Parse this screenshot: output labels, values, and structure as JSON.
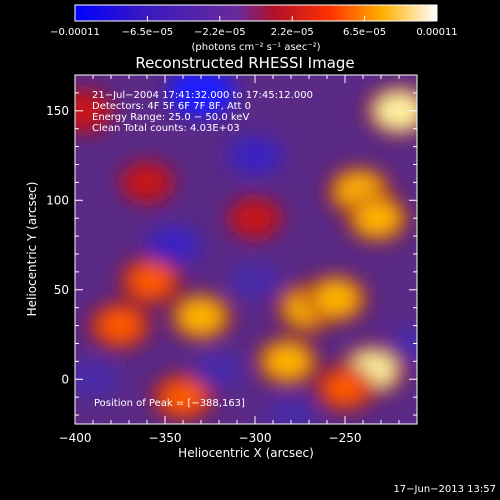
{
  "chart_data": {
    "type": "heatmap",
    "title": "Reconstructed RHESSI Image",
    "xlabel": "Heliocentric X (arcsec)",
    "ylabel": "Heliocentric Y (arcsec)",
    "xlim": [
      -400,
      -210
    ],
    "ylim": [
      -25,
      170
    ],
    "x_ticks": [
      -400,
      -350,
      -300,
      -250
    ],
    "x_tick_labels": [
      "−400",
      "−350",
      "−300",
      "−250"
    ],
    "y_ticks": [
      0,
      50,
      100,
      150
    ],
    "y_tick_labels": [
      "0",
      "50",
      "100",
      "150"
    ],
    "colorbar": {
      "range": [
        -0.00011,
        0.00011
      ],
      "tick_labels": [
        "−0.00011",
        "−6.5e−05",
        "−2.2e−05",
        "2.2e−05",
        "6.5e−05",
        "0.00011"
      ],
      "unit_label": "(photons cm⁻² s⁻¹ asec⁻²)",
      "colors": [
        "#0000ff",
        "#4a1aa0",
        "#7a2a90",
        "#c8001c",
        "#ff5a00",
        "#ffc000",
        "#ffffff"
      ]
    },
    "annotations": [
      "21−Jul−2004 17:41:32.000 to 17:45:12.000",
      "Detectors: 4F 5F 6F 7F 8F, Att 0",
      "Energy Range: 25.0 − 50.0 keV",
      "Clean    Total counts: 4.03E+03"
    ],
    "peak_label": "Position of Peak = [−388,163]",
    "peak": {
      "x": -388,
      "y": 163
    },
    "bright_sources": [
      {
        "x": -220,
        "y": 150,
        "v": 1.0
      },
      {
        "x": -242,
        "y": 105,
        "v": 0.95
      },
      {
        "x": -232,
        "y": 90,
        "v": 0.9
      },
      {
        "x": -270,
        "y": 40,
        "v": 0.95
      },
      {
        "x": -255,
        "y": 45,
        "v": 0.9
      },
      {
        "x": -330,
        "y": 35,
        "v": 0.9
      },
      {
        "x": -358,
        "y": 55,
        "v": 0.85
      },
      {
        "x": -375,
        "y": 30,
        "v": 0.85
      },
      {
        "x": -340,
        "y": -10,
        "v": 0.85
      },
      {
        "x": -282,
        "y": 10,
        "v": 0.9
      },
      {
        "x": -235,
        "y": 5,
        "v": 1.0
      },
      {
        "x": -250,
        "y": -5,
        "v": 0.8
      },
      {
        "x": -395,
        "y": 150,
        "v": 0.7
      },
      {
        "x": -360,
        "y": 110,
        "v": 0.6
      },
      {
        "x": -300,
        "y": 90,
        "v": 0.6
      }
    ],
    "dim_sources": [
      {
        "x": -330,
        "y": 160,
        "v": -1.0
      },
      {
        "x": -300,
        "y": 125,
        "v": -0.6
      },
      {
        "x": -345,
        "y": 75,
        "v": -0.55
      },
      {
        "x": -300,
        "y": 55,
        "v": -0.5
      },
      {
        "x": -210,
        "y": 20,
        "v": -0.5
      },
      {
        "x": -320,
        "y": 5,
        "v": -0.45
      },
      {
        "x": -390,
        "y": 0,
        "v": -0.5
      },
      {
        "x": -280,
        "y": -20,
        "v": -0.4
      }
    ]
  },
  "footer": {
    "timestamp": "17−Jun−2013 13:57"
  }
}
